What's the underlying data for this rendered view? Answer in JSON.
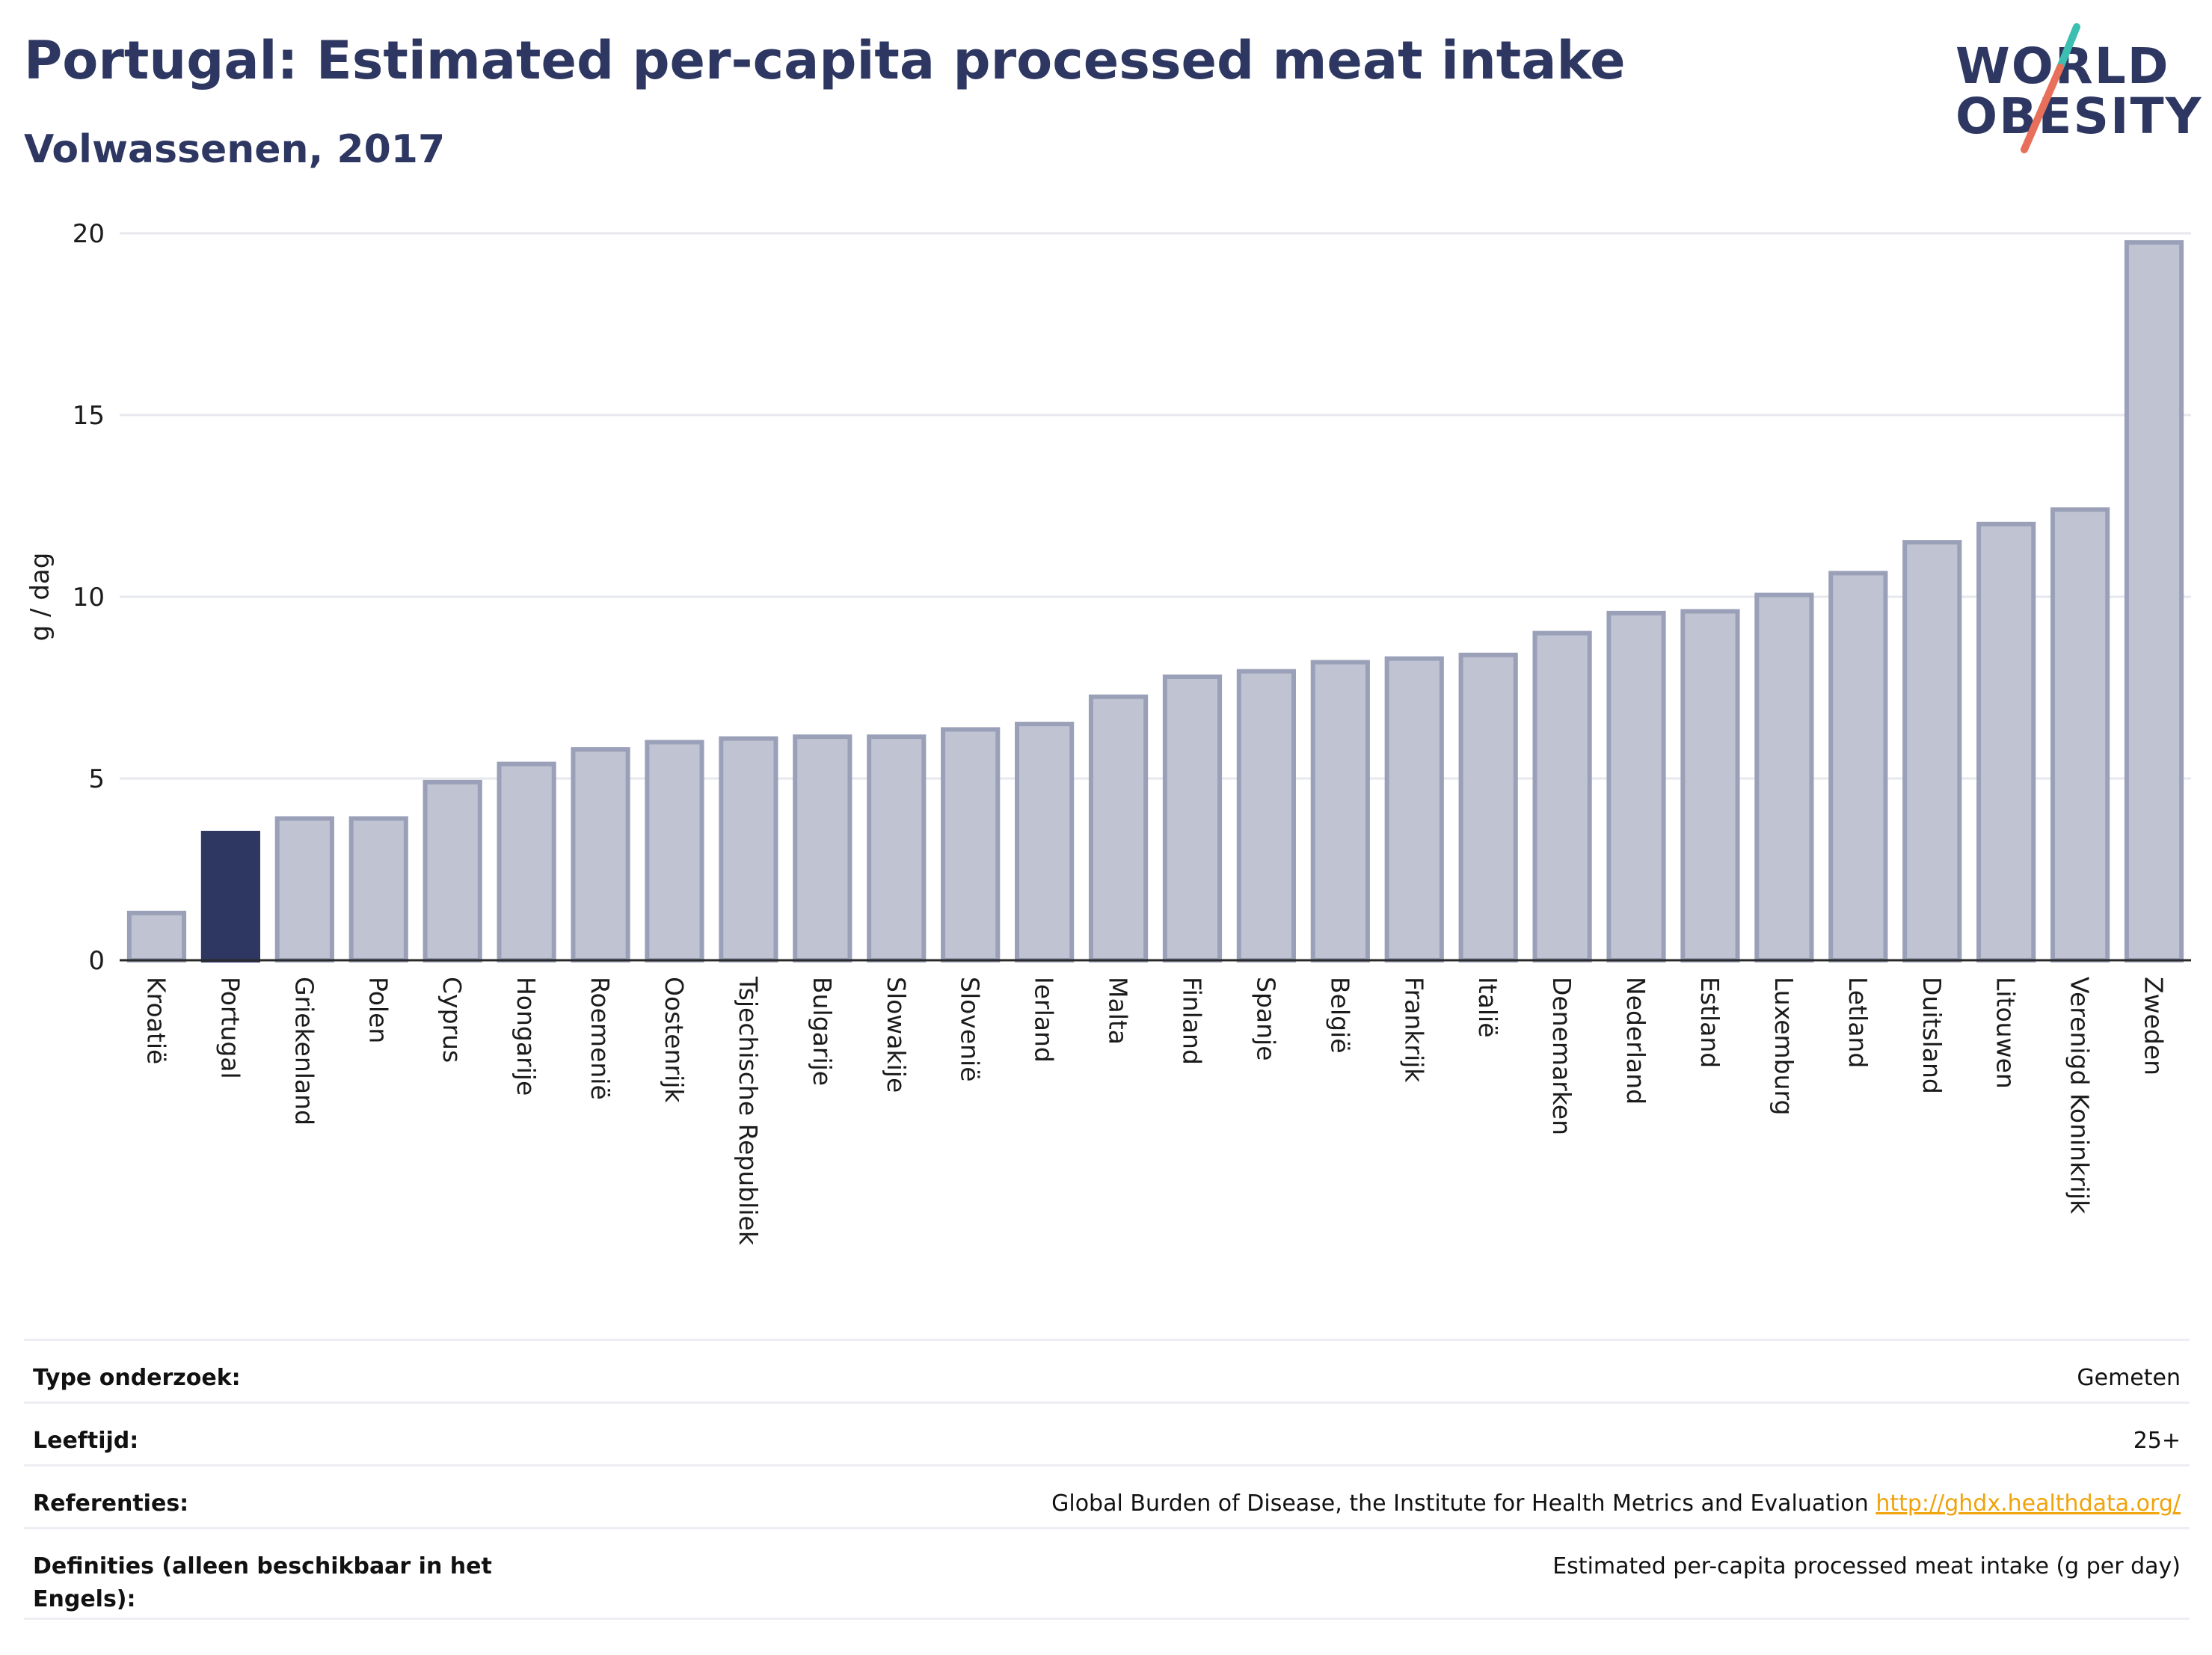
{
  "header": {
    "title": "Portugal: Estimated per-capita processed meat intake",
    "subtitle": "Volwassenen, 2017"
  },
  "logo": {
    "line1": "WORLD",
    "line2": "OBESITY",
    "colors": {
      "text": "#2d3761",
      "slash_top": "#3cbfb0",
      "slash_bottom": "#e8705a"
    }
  },
  "chart_data": {
    "type": "bar",
    "ylabel": "g / dag",
    "xlabel": "",
    "ylim": [
      0,
      20
    ],
    "yticks": [
      0,
      5,
      10,
      15,
      20
    ],
    "grid": true,
    "highlight": "Portugal",
    "colors": {
      "bar": "#c0c4d2",
      "bar_edge": "#9aa0b8",
      "highlight": "#2d3761",
      "grid": "#e6e8ee"
    },
    "categories": [
      "Kroatië",
      "Portugal",
      "Griekenland",
      "Polen",
      "Cyprus",
      "Hongarije",
      "Roemenië",
      "Oostenrijk",
      "Tsjechische Republiek",
      "Bulgarije",
      "Slowakije",
      "Slovenië",
      "Ierland",
      "Malta",
      "Finland",
      "Spanje",
      "België",
      "Frankrijk",
      "Italië",
      "Denemarken",
      "Nederland",
      "Estland",
      "Luxemburg",
      "Letland",
      "Duitsland",
      "Litouwen",
      "Verenigd Koninkrijk",
      "Zweden"
    ],
    "values": [
      1.3,
      3.5,
      3.9,
      3.9,
      4.9,
      5.4,
      5.8,
      6.0,
      6.1,
      6.15,
      6.15,
      6.35,
      6.5,
      7.25,
      7.8,
      7.95,
      8.2,
      8.3,
      8.4,
      9.0,
      9.55,
      9.6,
      10.05,
      10.65,
      11.5,
      12.0,
      12.4,
      19.75
    ]
  },
  "info": {
    "rows": [
      {
        "label": "Type onderzoek:",
        "value": "Gemeten"
      },
      {
        "label": "Leeftijd:",
        "value": "25+"
      },
      {
        "label": "Referenties:",
        "value": "Global Burden of Disease, the Institute for Health Metrics and Evaluation",
        "link": "http://ghdx.healthdata.org/"
      },
      {
        "label": "Definities (alleen beschikbaar in het Engels):",
        "value": "Estimated per-capita processed meat intake (g per day)"
      }
    ]
  }
}
